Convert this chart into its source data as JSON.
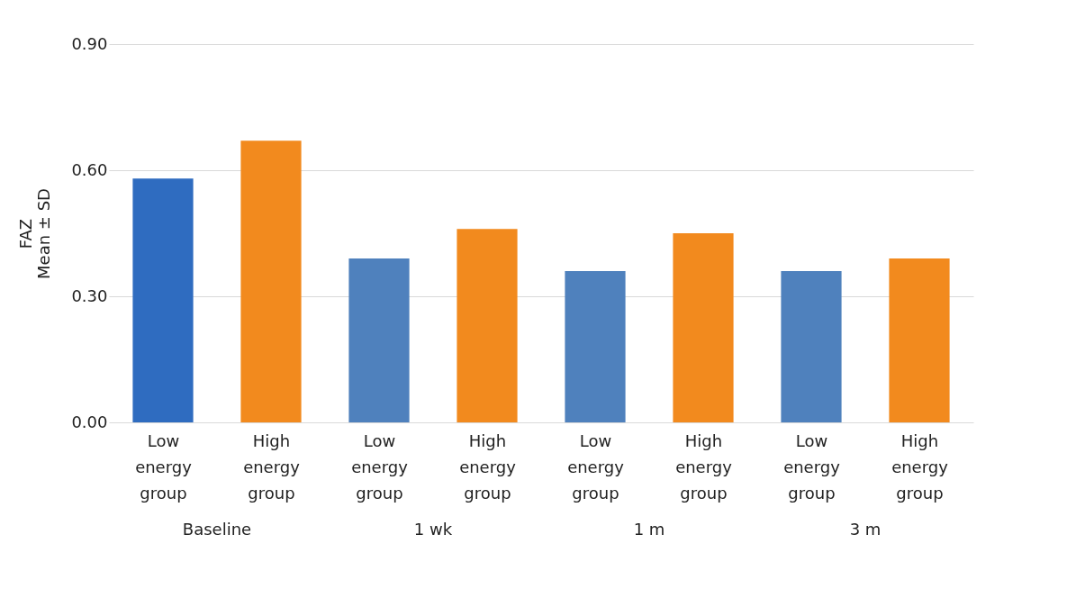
{
  "chart_data": {
    "type": "bar",
    "categories": [
      "Low energy group",
      "High energy group",
      "Low energy group",
      "High energy group",
      "Low energy group",
      "High energy group",
      "Low energy group",
      "High energy group"
    ],
    "values": [
      0.58,
      0.67,
      0.39,
      0.46,
      0.36,
      0.45,
      0.36,
      0.39
    ],
    "colors": [
      "#2f6cc0",
      "#f28a1e",
      "#4f81bd",
      "#f28a1e",
      "#4f81bd",
      "#f28a1e",
      "#4f81bd",
      "#f28a1e"
    ],
    "ylabel": "FAZ\nMean ± SD",
    "ylim": [
      0,
      0.9
    ],
    "yticks": [
      {
        "value": 0,
        "label": "0.00"
      },
      {
        "value": 0.3,
        "label": "0.30"
      },
      {
        "value": 0.6,
        "label": "0.60"
      },
      {
        "value": 0.9,
        "label": "0.90"
      }
    ],
    "grid": "y",
    "annotations": [
      "Baseline",
      "1 wk",
      "1 m",
      "3 m"
    ]
  }
}
